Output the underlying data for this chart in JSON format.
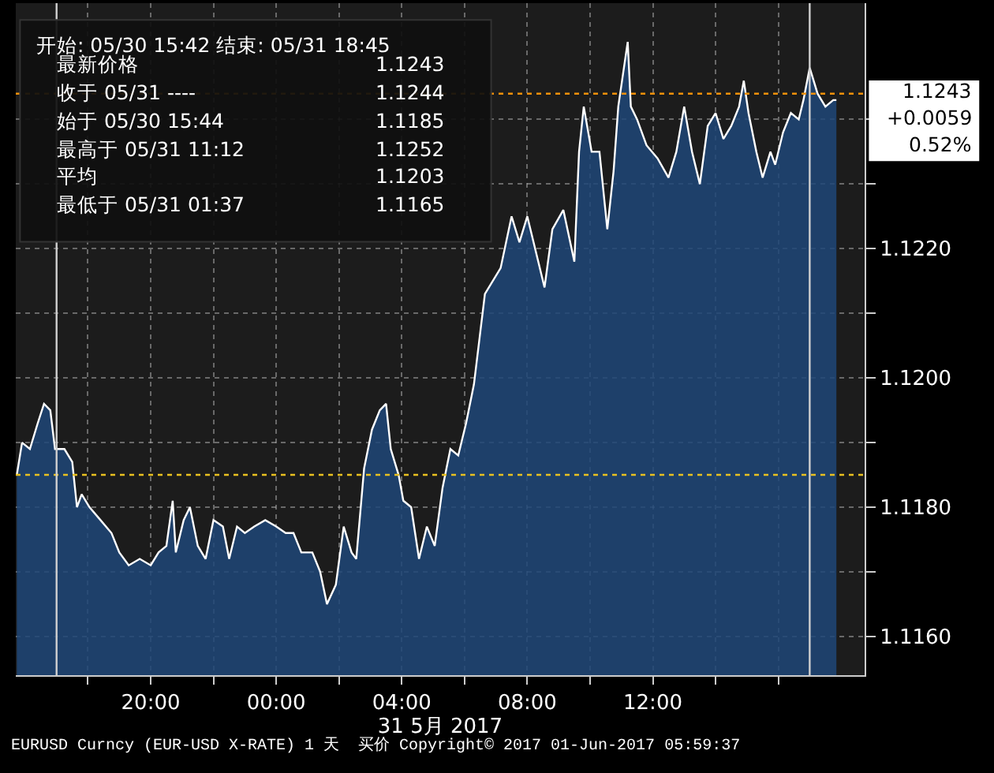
{
  "chart_data": {
    "type": "area",
    "x": [
      "2017-05-30T15:44",
      "2017-05-30T15:54",
      "2017-05-30T16:09",
      "2017-05-30T16:24",
      "2017-05-30T16:36",
      "2017-05-30T16:48",
      "2017-05-30T16:57",
      "2017-05-30T17:15",
      "2017-05-30T17:30",
      "2017-05-30T17:39",
      "2017-05-30T17:48",
      "2017-05-30T18:03",
      "2017-05-30T18:24",
      "2017-05-30T18:45",
      "2017-05-30T19:00",
      "2017-05-30T19:18",
      "2017-05-30T19:39",
      "2017-05-30T20:00",
      "2017-05-30T20:15",
      "2017-05-30T20:30",
      "2017-05-30T20:42",
      "2017-05-30T20:48",
      "2017-05-30T21:03",
      "2017-05-30T21:15",
      "2017-05-30T21:30",
      "2017-05-30T21:45",
      "2017-05-30T22:00",
      "2017-05-30T22:18",
      "2017-05-30T22:30",
      "2017-05-30T22:45",
      "2017-05-30T23:00",
      "2017-05-30T23:18",
      "2017-05-30T23:39",
      "2017-05-31T00:00",
      "2017-05-31T00:18",
      "2017-05-31T00:33",
      "2017-05-31T00:48",
      "2017-05-31T01:09",
      "2017-05-31T01:24",
      "2017-05-31T01:37",
      "2017-05-31T01:54",
      "2017-05-31T02:09",
      "2017-05-31T02:24",
      "2017-05-31T02:33",
      "2017-05-31T02:48",
      "2017-05-31T03:03",
      "2017-05-31T03:18",
      "2017-05-31T03:30",
      "2017-05-31T03:39",
      "2017-05-31T03:54",
      "2017-05-31T04:03",
      "2017-05-31T04:18",
      "2017-05-31T04:33",
      "2017-05-31T04:48",
      "2017-05-31T05:03",
      "2017-05-31T05:18",
      "2017-05-31T05:33",
      "2017-05-31T05:48",
      "2017-05-31T06:03",
      "2017-05-31T06:18",
      "2017-05-31T06:39",
      "2017-05-31T07:09",
      "2017-05-31T07:30",
      "2017-05-31T07:45",
      "2017-05-31T08:00",
      "2017-05-31T08:18",
      "2017-05-31T08:33",
      "2017-05-31T08:48",
      "2017-05-31T09:09",
      "2017-05-31T09:30",
      "2017-05-31T09:39",
      "2017-05-31T09:48",
      "2017-05-31T10:03",
      "2017-05-31T10:18",
      "2017-05-31T10:33",
      "2017-05-31T10:45",
      "2017-05-31T10:54",
      "2017-05-31T11:12",
      "2017-05-31T11:18",
      "2017-05-31T11:30",
      "2017-05-31T11:48",
      "2017-05-31T12:09",
      "2017-05-31T12:30",
      "2017-05-31T12:45",
      "2017-05-31T13:00",
      "2017-05-31T13:15",
      "2017-05-31T13:30",
      "2017-05-31T13:45",
      "2017-05-31T14:00",
      "2017-05-31T14:15",
      "2017-05-31T14:30",
      "2017-05-31T14:45",
      "2017-05-31T14:54",
      "2017-05-31T15:03",
      "2017-05-31T15:18",
      "2017-05-31T15:30",
      "2017-05-31T15:45",
      "2017-05-31T15:54",
      "2017-05-31T16:09",
      "2017-05-31T16:24",
      "2017-05-31T16:39",
      "2017-05-31T16:48",
      "2017-05-31T17:00",
      "2017-05-31T17:15",
      "2017-05-31T17:30",
      "2017-05-31T17:45",
      "2017-05-31T17:51"
    ],
    "series": [
      {
        "color": "#ffffff",
        "values": [
          1.1185,
          1.119,
          1.1189,
          1.1193,
          1.1196,
          1.1195,
          1.1189,
          1.1189,
          1.1187,
          1.118,
          1.1182,
          1.118,
          1.1178,
          1.1176,
          1.1173,
          1.1171,
          1.1172,
          1.1171,
          1.1173,
          1.1174,
          1.1181,
          1.1173,
          1.1178,
          1.118,
          1.1174,
          1.1172,
          1.1178,
          1.1177,
          1.1172,
          1.1177,
          1.1176,
          1.1177,
          1.1178,
          1.1177,
          1.1176,
          1.1176,
          1.1173,
          1.1173,
          1.117,
          1.1165,
          1.1168,
          1.1177,
          1.1173,
          1.1172,
          1.1186,
          1.1192,
          1.1195,
          1.1196,
          1.1189,
          1.1185,
          1.1181,
          1.118,
          1.1172,
          1.1177,
          1.1174,
          1.1183,
          1.1189,
          1.1188,
          1.1193,
          1.1199,
          1.1213,
          1.1217,
          1.1225,
          1.1221,
          1.1225,
          1.1219,
          1.1214,
          1.1223,
          1.1226,
          1.1218,
          1.1235,
          1.1242,
          1.1235,
          1.1235,
          1.1223,
          1.1232,
          1.1242,
          1.1252,
          1.1242,
          1.124,
          1.1236,
          1.1234,
          1.1231,
          1.1235,
          1.1242,
          1.1235,
          1.123,
          1.1239,
          1.1241,
          1.1237,
          1.1239,
          1.1242,
          1.1246,
          1.1241,
          1.1235,
          1.1231,
          1.1235,
          1.1233,
          1.1238,
          1.1241,
          1.124,
          1.1243,
          1.1248,
          1.1244,
          1.1242,
          1.1243,
          1.1243
        ]
      }
    ],
    "xlim": [
      "2017-05-30T15:42",
      "2017-05-31T18:45"
    ],
    "xticks": [
      {
        "value": "2017-05-30T18:00",
        "label": null
      },
      {
        "value": "2017-05-30T20:00",
        "label": "20:00"
      },
      {
        "value": "2017-05-30T22:00",
        "label": null
      },
      {
        "value": "2017-05-31T00:00",
        "label": "00:00"
      },
      {
        "value": "2017-05-31T02:00",
        "label": null
      },
      {
        "value": "2017-05-31T04:00",
        "label": "04:00"
      },
      {
        "value": "2017-05-31T06:00",
        "label": null
      },
      {
        "value": "2017-05-31T08:00",
        "label": "08:00"
      },
      {
        "value": "2017-05-31T10:00",
        "label": null
      },
      {
        "value": "2017-05-31T12:00",
        "label": "12:00"
      },
      {
        "value": "2017-05-31T14:00",
        "label": null
      },
      {
        "value": "2017-05-31T16:00",
        "label": null
      }
    ],
    "ylim": [
      1.1154,
      1.1258
    ],
    "yticks": [
      {
        "value": 1.116,
        "label": "1.1160"
      },
      {
        "value": 1.117,
        "label": null
      },
      {
        "value": 1.118,
        "label": "1.1180"
      },
      {
        "value": 1.119,
        "label": null
      },
      {
        "value": 1.12,
        "label": "1.1200"
      },
      {
        "value": 1.121,
        "label": null
      },
      {
        "value": 1.122,
        "label": "1.1220"
      },
      {
        "value": 1.123,
        "label": null
      },
      {
        "value": 1.124,
        "label": null
      }
    ],
    "xlabel": "31 5月 2017",
    "grid": true,
    "line_style": "solid",
    "ref_lines": [
      {
        "axis": "y",
        "value": 1.1185,
        "color": "#e8c020",
        "line_style": "dotted"
      },
      {
        "axis": "y",
        "value": 1.1244,
        "color": "#f0900a",
        "line_style": "dotted"
      },
      {
        "axis": "x",
        "value": "2017-05-30T17:00",
        "color": "#d0d0d0",
        "line_style": "solid"
      },
      {
        "axis": "x",
        "value": "2017-05-31T17:00",
        "color": "#d0d0d0",
        "line_style": "solid"
      }
    ],
    "annotations": [
      "开始: 05/30 15:42 结束: 05/31 18:45",
      "最新价格",
      "1.1243",
      "收于 05/31 ----",
      "1.1244",
      "始于 05/30 15:44",
      "1.1185",
      "最高于 05/31 11:12",
      "1.1252",
      "平均",
      "1.1203",
      "最低于 05/31 01:37",
      "1.1165",
      "1.1243",
      "+0.0059",
      "0.52%",
      "EURUSD Curncy (EUR-USD X-RATE) 1 天  买价 Copyright© 2017 01-Jun-2017 05:59:37"
    ]
  }
}
